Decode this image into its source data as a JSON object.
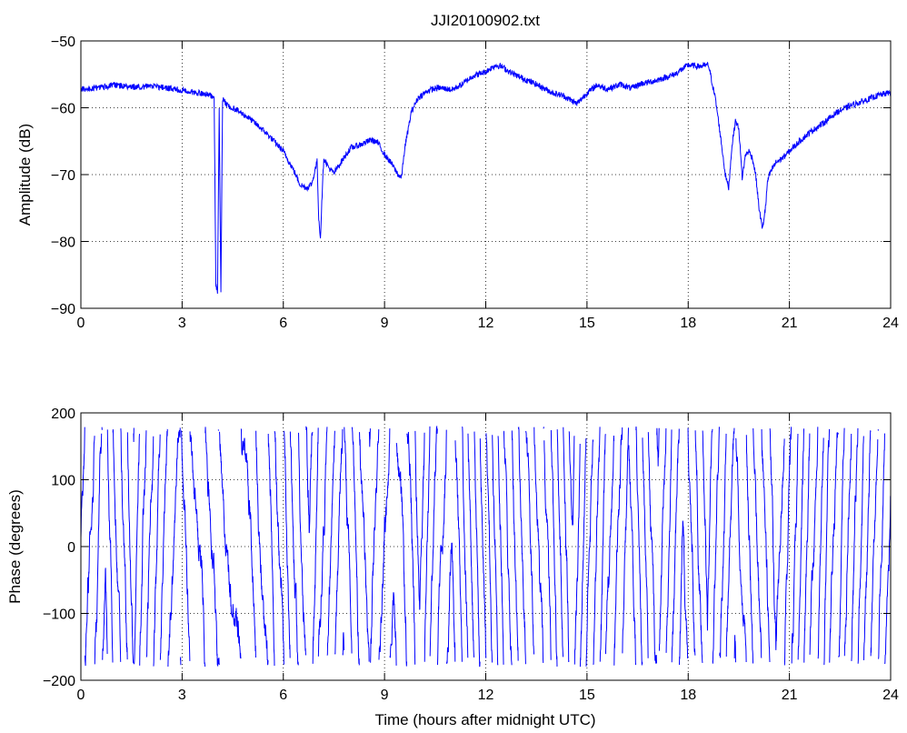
{
  "chart_data": [
    {
      "type": "line",
      "title": "JJI20100902.txt",
      "xlabel": "",
      "ylabel": "Amplitude (dB)",
      "xlim": [
        0,
        24
      ],
      "ylim": [
        -90,
        -50
      ],
      "xticks": [
        0,
        3,
        6,
        9,
        12,
        15,
        18,
        21,
        24
      ],
      "yticks": [
        -90,
        -80,
        -70,
        -60,
        -50
      ],
      "grid": true,
      "color": "#0000ff",
      "series": [
        {
          "x": [
            0,
            0.5,
            1.0,
            1.5,
            2.0,
            2.5,
            3.0,
            3.5,
            3.9,
            3.95,
            4.0,
            4.05,
            4.1,
            4.15,
            4.2,
            4.25,
            4.3,
            4.6,
            5.0,
            5.5,
            6.0,
            6.3,
            6.5,
            6.7,
            6.85,
            7.0,
            7.05,
            7.1,
            7.15,
            7.2,
            7.35,
            7.5,
            7.7,
            8.0,
            8.3,
            8.6,
            8.8,
            9.0,
            9.2,
            9.4,
            9.5,
            9.6,
            9.8,
            10.0,
            10.3,
            10.6,
            11.0,
            11.3,
            11.6,
            12.0,
            12.3,
            12.5,
            12.7,
            13.0,
            13.5,
            14.0,
            14.3,
            14.7,
            15.0,
            15.3,
            15.6,
            16.0,
            16.3,
            16.6,
            17.0,
            17.3,
            17.6,
            18.0,
            18.3,
            18.6,
            18.8,
            18.9,
            19.0,
            19.1,
            19.2,
            19.3,
            19.4,
            19.5,
            19.6,
            19.7,
            19.8,
            19.9,
            20.0,
            20.1,
            20.2,
            20.3,
            20.35,
            20.4,
            20.5,
            20.6,
            20.8,
            21.0,
            21.3,
            21.6,
            22.0,
            22.4,
            22.8,
            23.2,
            23.6,
            24.0
          ],
          "y": [
            -57.3,
            -57.0,
            -56.6,
            -56.9,
            -56.8,
            -57.0,
            -57.4,
            -57.8,
            -58.2,
            -58.4,
            -86.5,
            -87.5,
            -60.5,
            -88.0,
            -58.7,
            -58.8,
            -59.5,
            -60.3,
            -61.6,
            -63.8,
            -66.5,
            -69.3,
            -71.5,
            -72.0,
            -71.3,
            -68.0,
            -76.5,
            -79.5,
            -73.0,
            -67.5,
            -69.0,
            -69.8,
            -68.2,
            -66.0,
            -65.5,
            -64.8,
            -65.2,
            -67.0,
            -68.3,
            -70.0,
            -70.5,
            -66.0,
            -60.5,
            -58.5,
            -57.4,
            -57.0,
            -57.3,
            -56.5,
            -55.3,
            -54.6,
            -53.6,
            -53.9,
            -54.6,
            -55.4,
            -56.5,
            -57.8,
            -58.2,
            -59.4,
            -57.8,
            -56.6,
            -57.2,
            -56.5,
            -57.1,
            -56.4,
            -56.0,
            -55.5,
            -55.0,
            -53.6,
            -53.8,
            -53.6,
            -58.5,
            -62.0,
            -66.0,
            -70.0,
            -72.0,
            -65.5,
            -62.0,
            -63.0,
            -70.5,
            -67.0,
            -66.5,
            -67.5,
            -70.0,
            -75.0,
            -78.2,
            -74.5,
            -71.0,
            -70.2,
            -69.0,
            -68.2,
            -67.5,
            -66.5,
            -65.0,
            -63.7,
            -62.3,
            -60.7,
            -59.7,
            -59.0,
            -58.2,
            -57.7
          ]
        }
      ]
    },
    {
      "type": "line",
      "title": "",
      "xlabel": "Time (hours after midnight UTC)",
      "ylabel": "Phase (degrees)",
      "xlim": [
        0,
        24
      ],
      "ylim": [
        -200,
        200
      ],
      "xticks": [
        0,
        3,
        6,
        9,
        12,
        15,
        18,
        21,
        24
      ],
      "yticks": [
        -200,
        -100,
        0,
        100,
        200
      ],
      "grid": true,
      "color": "#0000ff",
      "wrap_range": [
        -180,
        180
      ],
      "series": [
        {
          "x": [
            0,
            1,
            2,
            3,
            4,
            4.6,
            5.0,
            5.5,
            6,
            7,
            8,
            9,
            9.5,
            10,
            11,
            12,
            13,
            14,
            15,
            16,
            17,
            18,
            19,
            20,
            21,
            22,
            23,
            24
          ],
          "y": [
            0,
            -40,
            20,
            30,
            -20,
            -60,
            60,
            120,
            40,
            -30,
            10,
            40,
            50,
            0,
            -20,
            10,
            -10,
            20,
            -30,
            0,
            20,
            -10,
            30,
            -20,
            10,
            -30,
            20,
            -40
          ],
          "rate_deg_per_hour": [
            1700,
            1600,
            1700,
            1100,
            600,
            300,
            900,
            1500,
            1600,
            1700,
            1700,
            1200,
            1500,
            1800,
            1800,
            1700,
            1700,
            1800,
            1700,
            1800,
            1800,
            1700,
            1800,
            1700,
            1800,
            1800,
            1800,
            1800
          ]
        }
      ]
    }
  ]
}
